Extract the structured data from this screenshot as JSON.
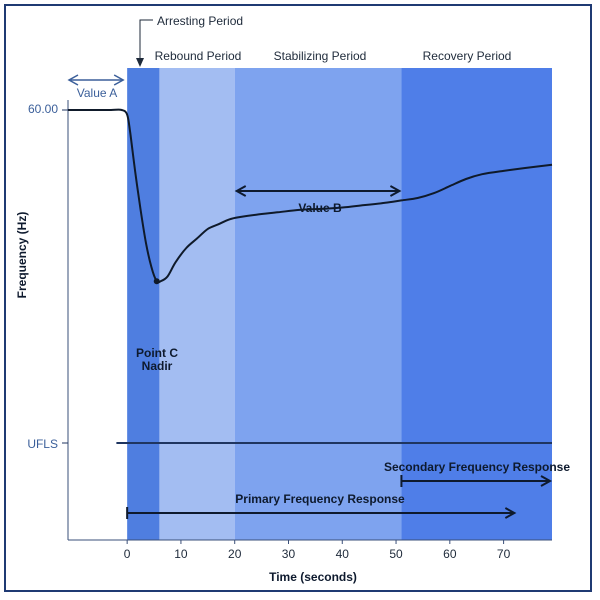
{
  "chart_data": {
    "type": "line",
    "xlabel": "Time (seconds)",
    "ylabel": "Frequency (Hz)",
    "xlim": [
      -11,
      79
    ],
    "x_ticks": [
      0,
      10,
      20,
      30,
      40,
      50,
      60,
      70
    ],
    "y_reference_lines": [
      {
        "label": "60.00",
        "value": 60.0
      },
      {
        "label": "UFLS",
        "value": 59.3
      }
    ],
    "ylim": [
      59.12,
      60.0
    ],
    "periods": [
      {
        "name": "Arresting Period",
        "start": 0,
        "end": 6
      },
      {
        "name": "Rebound Period",
        "start": 6,
        "end": 20
      },
      {
        "name": "Stabilizing Period",
        "start": 20,
        "end": 51
      },
      {
        "name": "Recovery Period",
        "start": 51,
        "end": 79
      }
    ],
    "series": [
      {
        "x": [
          -11,
          -6,
          -3,
          -1,
          0,
          0.6,
          1.5,
          2.5,
          3.5,
          4.5,
          5.5,
          6.2,
          7.5,
          9,
          11,
          13,
          15,
          17,
          19,
          21,
          24,
          28,
          32,
          36,
          40,
          44,
          48,
          51,
          54,
          57,
          60,
          63,
          66,
          70,
          74,
          79
        ],
        "y": [
          60.0,
          60.0,
          60.0,
          60.0,
          59.99,
          59.95,
          59.87,
          59.79,
          59.72,
          59.67,
          59.64,
          59.64,
          59.65,
          59.68,
          59.71,
          59.73,
          59.75,
          59.76,
          59.77,
          59.775,
          59.78,
          59.785,
          59.79,
          59.792,
          59.795,
          59.8,
          59.805,
          59.81,
          59.815,
          59.825,
          59.84,
          59.855,
          59.865,
          59.872,
          59.878,
          59.885
        ]
      }
    ],
    "annotations": {
      "value_a": {
        "label": "Value A",
        "x_start": -11,
        "x_end": 0
      },
      "value_b": {
        "label": "Value B",
        "x_start": 20,
        "x_end": 51
      },
      "nadir": {
        "label_line1": "Point C",
        "label_line2": "Nadir",
        "x": 5.5,
        "y": 59.64
      },
      "secondary": {
        "label": "Secondary Frequency Response",
        "x_start": 51,
        "x_end": 79
      },
      "primary": {
        "label": "Primary Frequency Response",
        "x_start": 0,
        "x_end": 72
      }
    },
    "colors": {
      "arresting": "#4f7ee0",
      "rebound": "#a3bdf2",
      "stabilizing": "#7ea3ef",
      "recovery": "#4f7ee8",
      "line": "#0f1a2a",
      "ref_line": "#1f3560",
      "label_blue": "#3b5f9a"
    }
  }
}
